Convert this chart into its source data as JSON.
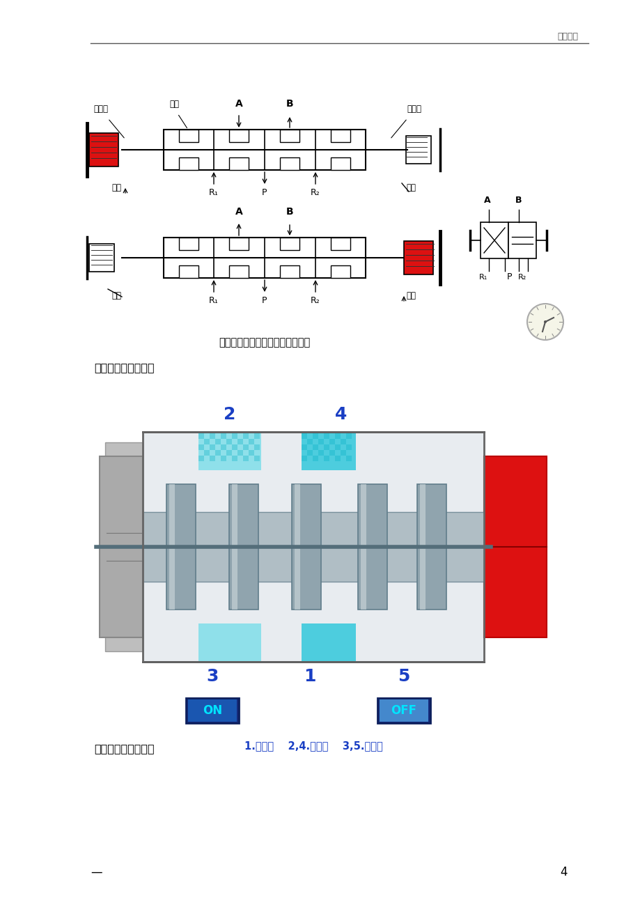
{
  "page_bg": "#ffffff",
  "header_text": "精选文档",
  "header_line_color": "#555555",
  "footer_dash": "—",
  "footer_page": "4",
  "section1_text": "右侧失电，左侧得电",
  "section2_text": "右侧得电，左侧失电",
  "diagram_caption": "双电控直动式电磁阀的动作原理图",
  "label_on": "ON",
  "label_off": "OFF",
  "bottom_label": "1.供气口    2,4.工作口    3,5.排气口",
  "on_box_color": "#1a56b0",
  "off_box_color": "#1a56b0",
  "off_box_lighter": "#4488dd",
  "red_block_color": "#dd1111",
  "gray_block_color": "#999999",
  "gray_block_dark": "#777777",
  "cyan_light": "#80deea",
  "cyan_mid": "#26c6da",
  "cyan_dark": "#00acc1",
  "port_num_color": "#1a3fc4",
  "body_gray": "#c0c8d0",
  "spool_color": "#909aa0",
  "shaft_color": "#707880",
  "label_blue": "#1a3fc4"
}
